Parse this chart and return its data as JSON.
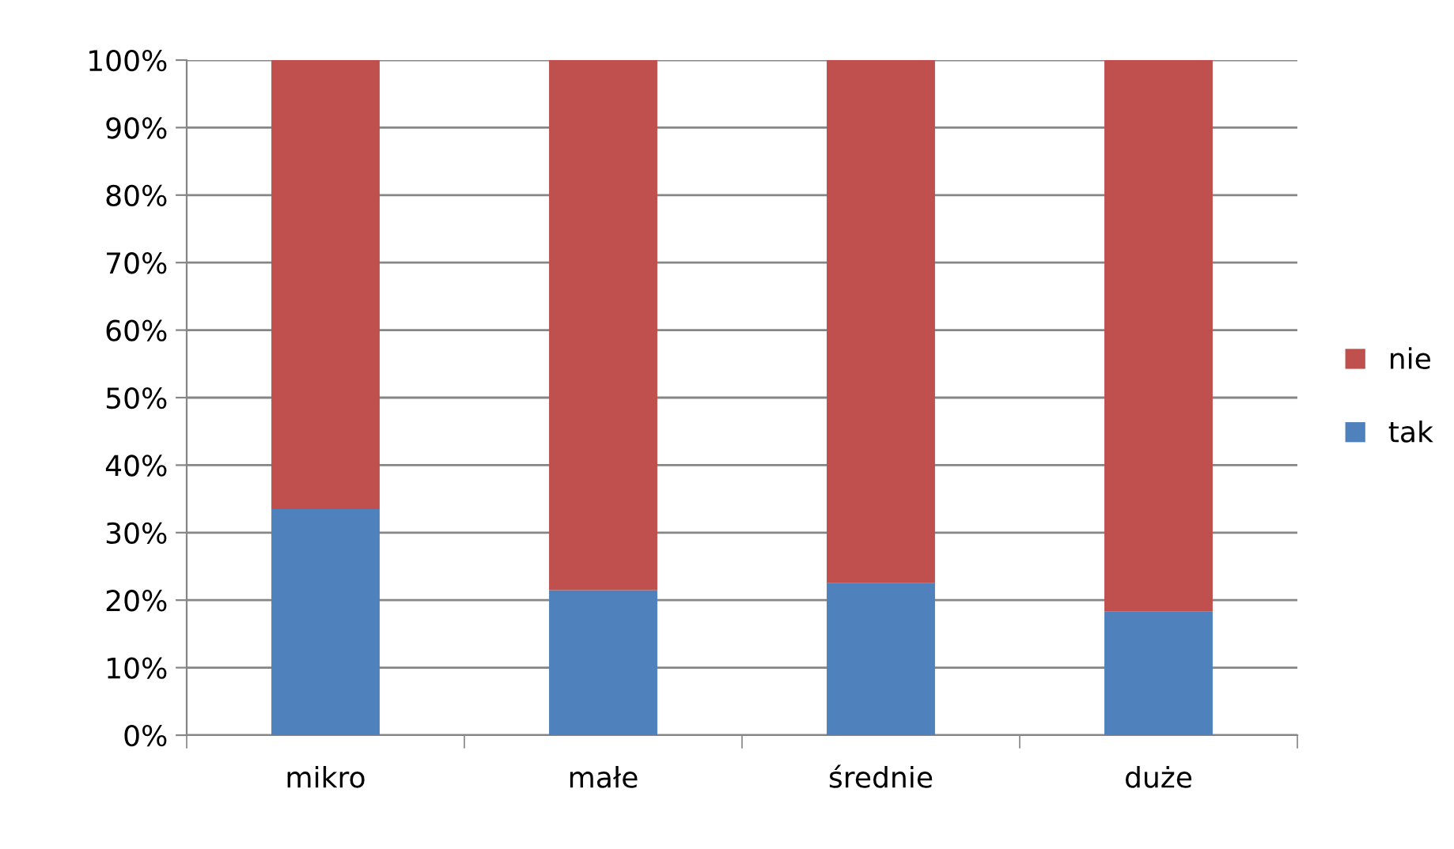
{
  "chart_data": {
    "type": "bar",
    "stacked": true,
    "categories": [
      "mikro",
      "małe",
      "średnie",
      "duże"
    ],
    "series": [
      {
        "name": "tak",
        "color": "#4f81bd",
        "values": [
          33.5,
          21.5,
          22.5,
          18.3
        ]
      },
      {
        "name": "nie",
        "color": "#c0504d",
        "values": [
          66.5,
          78.5,
          77.5,
          81.7
        ]
      }
    ],
    "ylim": [
      0,
      100
    ],
    "yticks": [
      {
        "value": 0,
        "label": "0%"
      },
      {
        "value": 10,
        "label": "10%"
      },
      {
        "value": 20,
        "label": "20%"
      },
      {
        "value": 30,
        "label": "30%"
      },
      {
        "value": 40,
        "label": "40%"
      },
      {
        "value": 50,
        "label": "50%"
      },
      {
        "value": 60,
        "label": "60%"
      },
      {
        "value": 70,
        "label": "70%"
      },
      {
        "value": 80,
        "label": "80%"
      },
      {
        "value": 90,
        "label": "90%"
      },
      {
        "value": 100,
        "label": "100%"
      }
    ],
    "grid": "y",
    "legend": "right"
  }
}
